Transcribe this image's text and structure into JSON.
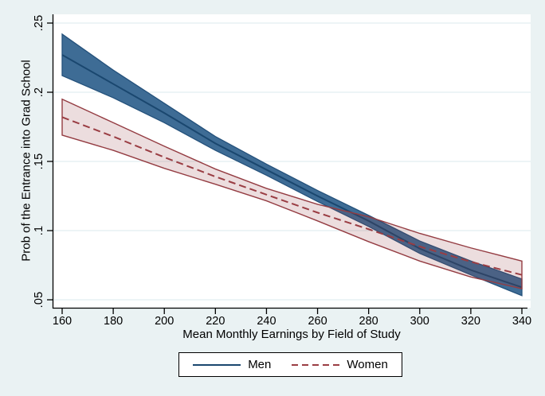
{
  "figure": {
    "background": "#eaf2f3",
    "plot_background": "#ffffff",
    "grid_color": "#e2edf0",
    "axis_color": "#000000",
    "legend_background": "#ffffff",
    "legend_border": "#000000"
  },
  "chart_data": {
    "type": "line",
    "title": "",
    "xlabel": "Mean Monthly Earnings by Field of Study",
    "ylabel": "Prob of the Entrance into Grad School",
    "xlim": [
      160,
      340
    ],
    "ylim": [
      0.05,
      0.25
    ],
    "grid": "horizontal gridlines at each y tick",
    "legend_position": "bottom-center boxed",
    "xticks": {
      "values": [
        160,
        180,
        200,
        220,
        240,
        260,
        280,
        300,
        320,
        340
      ],
      "labels": [
        "160",
        "180",
        "200",
        "220",
        "240",
        "260",
        "280",
        "300",
        "320",
        "340"
      ]
    },
    "yticks": {
      "values": [
        0.05,
        0.1,
        0.15,
        0.2,
        0.25
      ],
      "labels": [
        ".05",
        ".1",
        ".15",
        ".2",
        ".25"
      ]
    },
    "x": [
      160,
      180,
      200,
      220,
      240,
      260,
      280,
      300,
      320,
      340
    ],
    "series": [
      {
        "name": "Men",
        "line_style": "solid",
        "line_color": "#1a476f",
        "band_fill": "#3e6c95",
        "band_edge": "#24517b",
        "mid": [
          0.227,
          0.206,
          0.185,
          0.163,
          0.144,
          0.125,
          0.107,
          0.087,
          0.0715,
          0.059
        ],
        "upper": [
          0.242,
          0.216,
          0.192,
          0.168,
          0.148,
          0.129,
          0.111,
          0.0925,
          0.078,
          0.065
        ],
        "lower": [
          0.212,
          0.196,
          0.178,
          0.158,
          0.14,
          0.121,
          0.103,
          0.0835,
          0.068,
          0.053
        ]
      },
      {
        "name": "Women",
        "line_style": "dashed",
        "line_color": "#9a3d43",
        "band_fill": "rgba(144,53,59,0.17)",
        "band_edge": "#943c42",
        "mid": [
          0.182,
          0.168,
          0.153,
          0.139,
          0.126,
          0.113,
          0.101,
          0.0885,
          0.0775,
          0.068
        ],
        "upper": [
          0.195,
          0.178,
          0.161,
          0.1445,
          0.1305,
          0.119,
          0.11,
          0.098,
          0.0875,
          0.078
        ],
        "lower": [
          0.169,
          0.158,
          0.145,
          0.1335,
          0.1215,
          0.107,
          0.092,
          0.078,
          0.0665,
          0.058
        ]
      }
    ]
  }
}
